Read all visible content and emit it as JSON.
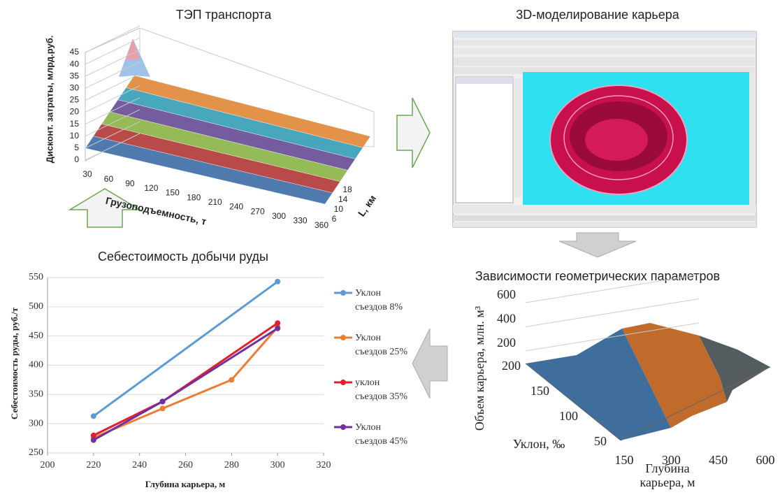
{
  "transport": {
    "title": "ТЭП транспорта",
    "z_label": "Дисконт. затраты, млрд.руб.",
    "z_ticks": [
      0,
      5,
      10,
      15,
      20,
      25,
      30,
      35,
      40,
      45
    ],
    "x_label": "Грузоподъемность, т",
    "x_ticks": [
      30,
      60,
      90,
      120,
      150,
      180,
      210,
      240,
      270,
      300,
      330,
      360
    ],
    "y_label": "L, км",
    "y_ticks": [
      6,
      10,
      14,
      18
    ]
  },
  "model": {
    "title": "3D-моделирование карьера"
  },
  "geometry": {
    "title": "Зависимости геометрических параметров",
    "z_label": "Объем карьера, млн. м³",
    "z_ticks": [
      200,
      400,
      600
    ],
    "y_label": "Уклон, ‰",
    "y_ticks": [
      200,
      150,
      100,
      50
    ],
    "x_label": "Глубина карьера, м",
    "x_ticks": [
      150,
      300,
      450,
      600
    ]
  },
  "chart_data": {
    "type": "line",
    "title": "Себестоимость добычи руды",
    "x_label": "Глубина карьера, м",
    "y_label": "Себестоимость руды, руб./т",
    "xlim": [
      200,
      320
    ],
    "xticks": [
      200,
      220,
      240,
      260,
      280,
      300,
      320
    ],
    "ylim": [
      250,
      550
    ],
    "yticks": [
      250,
      300,
      350,
      400,
      450,
      500,
      550
    ],
    "grid": true,
    "series": [
      {
        "name": "Уклон съездов 8%",
        "color": "#5b9bd5",
        "x": [
          220,
          300
        ],
        "values": [
          313,
          543
        ]
      },
      {
        "name": "Уклон съездов 25%",
        "color": "#ed7d31",
        "x": [
          220,
          250,
          280,
          300
        ],
        "values": [
          276,
          326,
          375,
          465
        ]
      },
      {
        "name": "уклон съездов 35%",
        "color": "#e0202a",
        "x": [
          220,
          250,
          300
        ],
        "values": [
          280,
          338,
          472
        ]
      },
      {
        "name": "Уклон съездов 45%",
        "color": "#7030a0",
        "x": [
          220,
          250,
          300
        ],
        "values": [
          272,
          338,
          463
        ]
      }
    ]
  }
}
